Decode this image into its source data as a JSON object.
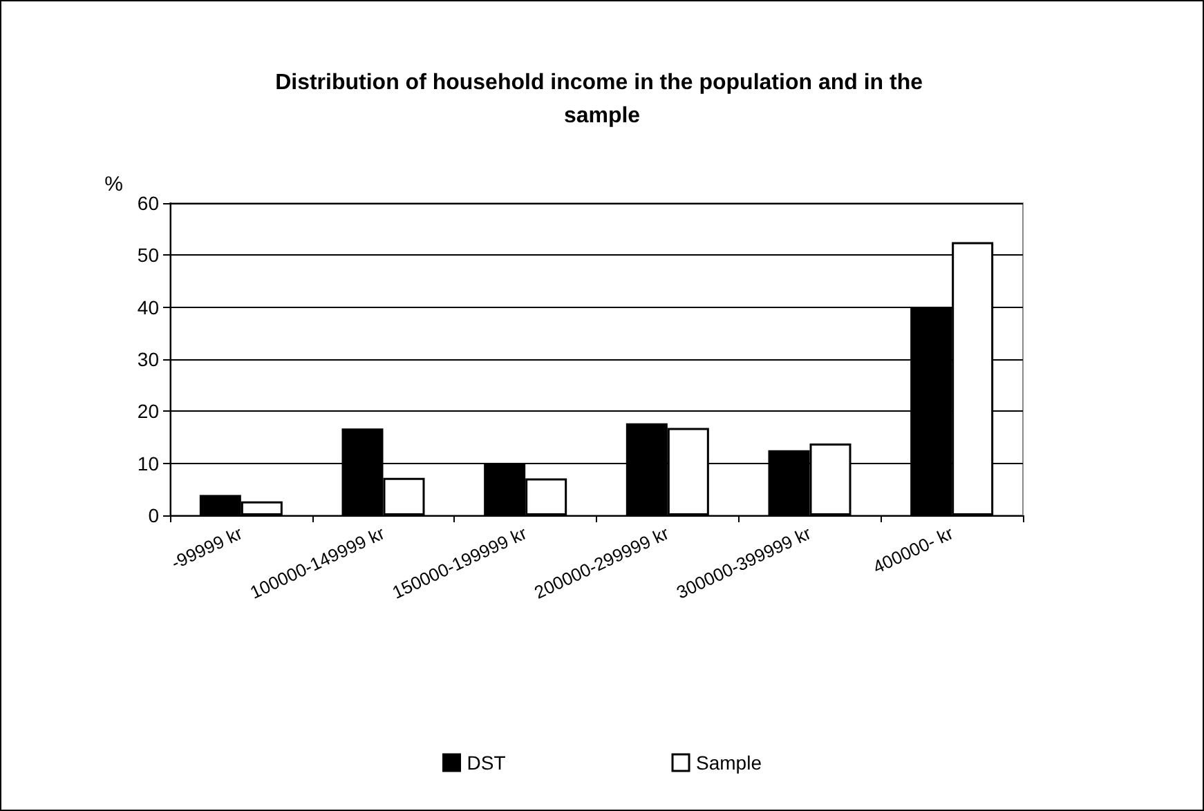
{
  "chart_data": {
    "type": "bar",
    "title": "Distribution of household income in the population and in the sample",
    "ylabel": "%",
    "categories": [
      "-99999 kr",
      "100000-149999 kr",
      "150000-199999 kr",
      "200000-299999 kr",
      "300000-399999 kr",
      "400000- kr"
    ],
    "series": [
      {
        "name": "DST",
        "color": "#000000",
        "values": [
          3.9,
          16.7,
          10,
          17.7,
          12.5,
          40
        ]
      },
      {
        "name": "Sample",
        "color": "#ffffff",
        "values": [
          2.7,
          7.2,
          7.1,
          16.8,
          13.8,
          52.5
        ]
      }
    ],
    "ylim": [
      0,
      60
    ],
    "yticks": [
      0,
      10,
      20,
      30,
      40,
      50,
      60
    ],
    "grid": "y",
    "legend": "bottom"
  }
}
